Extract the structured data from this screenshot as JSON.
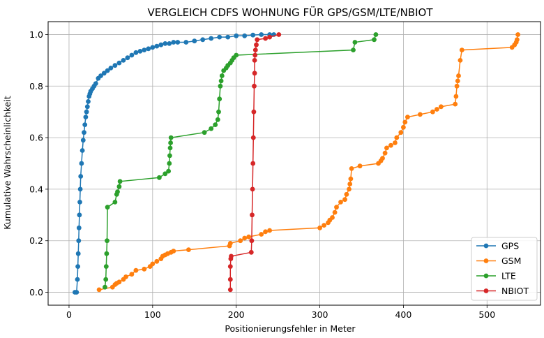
{
  "chart_data": {
    "type": "line",
    "title": "VERGLEICH CDFS WOHNUNG FÜR GPS/GSM/LTE/NBIOT",
    "xlabel": "Positionierungsfehler in Meter",
    "ylabel": "Kumulative Wahrscheinlichkeit",
    "xlim": [
      -25,
      564
    ],
    "ylim": [
      -0.05,
      1.05
    ],
    "xticks": [
      0,
      100,
      200,
      300,
      400,
      500
    ],
    "yticks": [
      0.0,
      0.2,
      0.4,
      0.6,
      0.8,
      1.0
    ],
    "xtick_labels": [
      "0",
      "100",
      "200",
      "300",
      "400",
      "500"
    ],
    "ytick_labels": [
      "0.0",
      "0.2",
      "0.4",
      "0.6",
      "0.8",
      "1.0"
    ],
    "grid": true,
    "legend_position": "lower-right",
    "series": [
      {
        "name": "GPS",
        "color": "#1f77b4",
        "x": [
          7,
          9,
          10,
          10.5,
          11,
          11.5,
          12,
          12.5,
          13,
          13.5,
          14,
          15,
          16,
          17,
          18,
          19,
          20,
          21,
          22,
          23,
          24,
          25,
          26,
          28,
          30,
          32,
          35,
          38,
          42,
          46,
          50,
          55,
          60,
          65,
          70,
          75,
          80,
          85,
          90,
          95,
          100,
          105,
          110,
          115,
          120,
          125,
          130,
          140,
          150,
          160,
          170,
          180,
          190,
          200,
          210,
          220,
          230,
          240,
          245
        ],
        "y": [
          0.0,
          0.0,
          0.05,
          0.1,
          0.15,
          0.2,
          0.25,
          0.3,
          0.35,
          0.4,
          0.45,
          0.5,
          0.55,
          0.59,
          0.62,
          0.65,
          0.68,
          0.7,
          0.72,
          0.74,
          0.76,
          0.77,
          0.78,
          0.79,
          0.8,
          0.81,
          0.83,
          0.84,
          0.85,
          0.86,
          0.87,
          0.88,
          0.89,
          0.9,
          0.91,
          0.92,
          0.93,
          0.935,
          0.94,
          0.945,
          0.95,
          0.955,
          0.96,
          0.965,
          0.965,
          0.97,
          0.97,
          0.97,
          0.975,
          0.98,
          0.985,
          0.99,
          0.99,
          0.995,
          0.995,
          0.998,
          1.0,
          1.0,
          1.0
        ]
      },
      {
        "name": "GSM",
        "color": "#ff7f0e",
        "x": [
          36,
          52,
          55,
          57,
          60,
          65,
          68,
          75,
          80,
          90,
          97,
          100,
          105,
          110,
          112,
          115,
          118,
          122,
          125,
          143,
          192,
          193,
          205,
          210,
          215,
          230,
          235,
          240,
          300,
          305,
          310,
          312,
          315,
          318,
          320,
          325,
          330,
          332,
          335,
          336,
          337,
          338,
          348,
          370,
          373,
          375,
          378,
          380,
          385,
          390,
          392,
          397,
          400,
          402,
          405,
          420,
          435,
          440,
          445,
          462,
          463,
          464,
          465,
          466,
          468,
          470,
          530,
          533,
          535,
          536,
          537
        ],
        "y": [
          0.01,
          0.02,
          0.03,
          0.035,
          0.04,
          0.05,
          0.06,
          0.07,
          0.085,
          0.09,
          0.1,
          0.11,
          0.12,
          0.13,
          0.14,
          0.145,
          0.15,
          0.155,
          0.16,
          0.165,
          0.18,
          0.19,
          0.2,
          0.21,
          0.215,
          0.225,
          0.235,
          0.24,
          0.25,
          0.26,
          0.27,
          0.28,
          0.29,
          0.31,
          0.33,
          0.35,
          0.36,
          0.38,
          0.4,
          0.42,
          0.44,
          0.48,
          0.49,
          0.5,
          0.51,
          0.52,
          0.54,
          0.56,
          0.57,
          0.58,
          0.6,
          0.62,
          0.64,
          0.66,
          0.68,
          0.69,
          0.7,
          0.71,
          0.72,
          0.73,
          0.76,
          0.8,
          0.82,
          0.84,
          0.9,
          0.94,
          0.95,
          0.96,
          0.97,
          0.98,
          1.0
        ]
      },
      {
        "name": "LTE",
        "color": "#2ca02c",
        "x": [
          43,
          44,
          44.5,
          45,
          45.5,
          46,
          55,
          57,
          58,
          60,
          61,
          108,
          115,
          119,
          120,
          120.5,
          121,
          121.5,
          122,
          162,
          170,
          175,
          178,
          179,
          180,
          181,
          182,
          183,
          185,
          188,
          190,
          193,
          195,
          197,
          200,
          340,
          342,
          365,
          367
        ],
        "y": [
          0.02,
          0.05,
          0.1,
          0.15,
          0.2,
          0.33,
          0.35,
          0.38,
          0.39,
          0.41,
          0.43,
          0.445,
          0.46,
          0.47,
          0.5,
          0.53,
          0.56,
          0.58,
          0.6,
          0.62,
          0.635,
          0.65,
          0.67,
          0.7,
          0.75,
          0.8,
          0.82,
          0.84,
          0.86,
          0.87,
          0.88,
          0.89,
          0.9,
          0.91,
          0.92,
          0.94,
          0.97,
          0.98,
          1.0
        ]
      },
      {
        "name": "NBIOT",
        "color": "#d62728",
        "x": [
          193,
          193,
          193,
          193.5,
          194,
          218,
          218.5,
          219,
          219.5,
          220,
          220.5,
          221,
          221.5,
          222,
          222,
          222.5,
          223,
          224,
          225,
          235,
          240,
          251
        ],
        "y": [
          0.01,
          0.05,
          0.1,
          0.13,
          0.14,
          0.155,
          0.2,
          0.3,
          0.4,
          0.5,
          0.6,
          0.7,
          0.8,
          0.85,
          0.9,
          0.92,
          0.94,
          0.96,
          0.98,
          0.985,
          0.99,
          1.0
        ]
      }
    ]
  }
}
